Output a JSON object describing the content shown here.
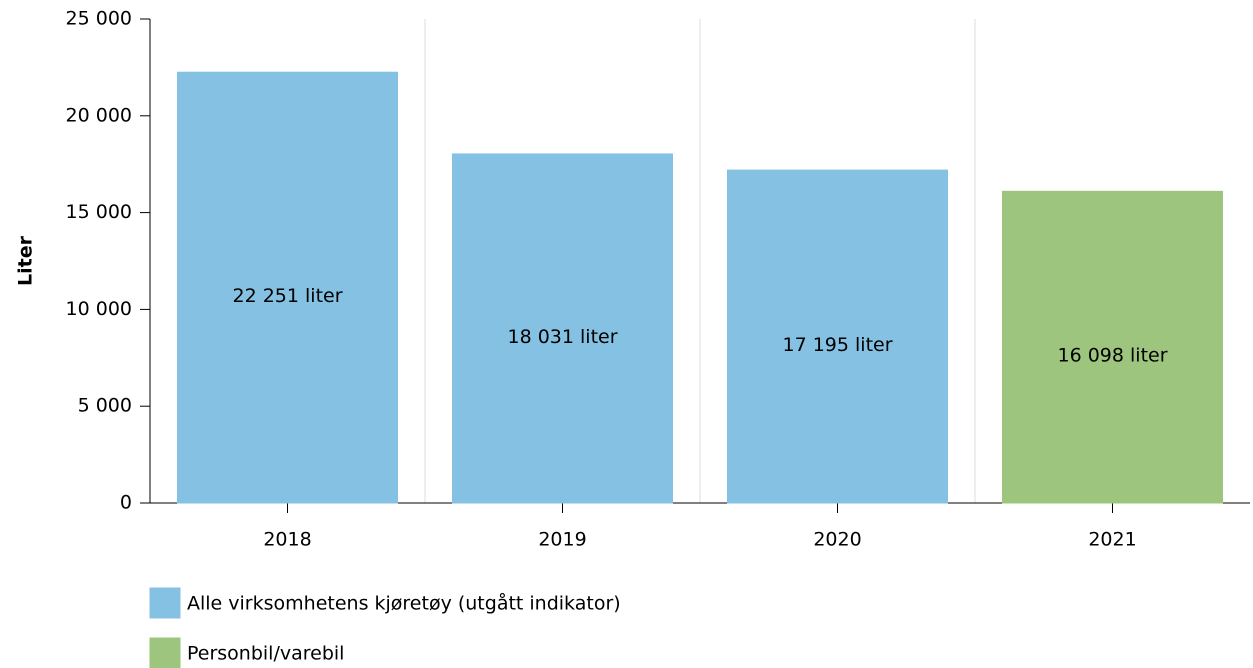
{
  "chart_data": {
    "type": "bar",
    "ylabel": "Liter",
    "categories": [
      "2018",
      "2019",
      "2020",
      "2021"
    ],
    "series": [
      {
        "name": "Alle virksomhetens kjøretøy (utgått indikator)",
        "color": "#85c1e3",
        "values": [
          22251,
          18031,
          17195,
          null
        ],
        "value_labels": [
          "22 251 liter",
          "18 031 liter",
          "17 195 liter",
          null
        ]
      },
      {
        "name": "Personbil/varebil",
        "color": "#9dc57d",
        "values": [
          null,
          null,
          null,
          16098
        ],
        "value_labels": [
          null,
          null,
          null,
          "16 098 liter"
        ]
      }
    ],
    "ylim": [
      0,
      25000
    ],
    "yticks": [
      0,
      {
        "value": 5000,
        "label": "5 000"
      },
      {
        "value": 10000,
        "label": "10 000"
      },
      {
        "value": 15000,
        "label": "15 000"
      },
      {
        "value": 20000,
        "label": "20 000"
      },
      {
        "value": 25000,
        "label": "25 000"
      }
    ],
    "grid": true
  }
}
